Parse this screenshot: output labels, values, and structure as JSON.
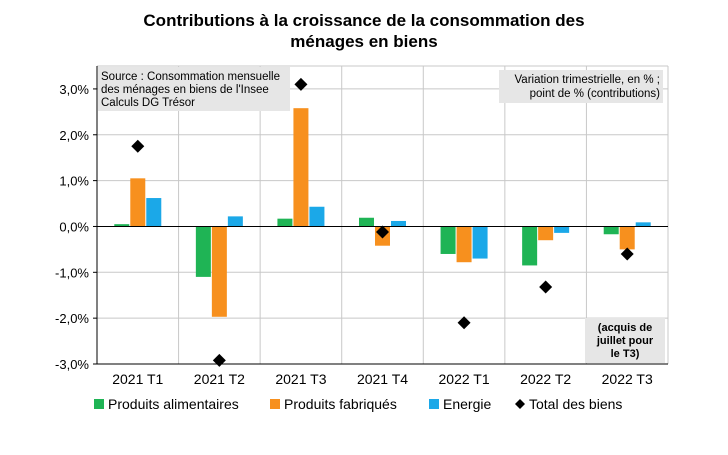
{
  "chart_data": {
    "type": "bar",
    "title_lines": [
      "Contributions à la croissance de la consommation des",
      "ménages en biens"
    ],
    "categories": [
      "2021 T1",
      "2021 T2",
      "2021 T3",
      "2021 T4",
      "2022 T1",
      "2022 T2",
      "2022 T3"
    ],
    "series": [
      {
        "name": "Produits alimentaires",
        "values": [
          0.05,
          -1.1,
          0.17,
          0.19,
          -0.6,
          -0.85,
          -0.17
        ],
        "color": "#1fb455"
      },
      {
        "name": "Produits fabriqués",
        "values": [
          1.05,
          -1.97,
          2.58,
          -0.42,
          -0.78,
          -0.3,
          -0.5
        ],
        "color": "#f7901e"
      },
      {
        "name": "Energie",
        "values": [
          0.62,
          0.22,
          0.43,
          0.12,
          -0.7,
          -0.14,
          0.09
        ],
        "color": "#1ba8e8"
      }
    ],
    "total": {
      "name": "Total des biens",
      "values": [
        1.75,
        -2.92,
        3.1,
        -0.12,
        -2.1,
        -1.32,
        -0.6
      ],
      "color": "#000000"
    },
    "ylim": [
      -3,
      3.5
    ],
    "yticks": [
      -3,
      -2,
      -1,
      0,
      1,
      2,
      3
    ],
    "ytick_labels": [
      "-3,0%",
      "-2,0%",
      "-1,0%",
      "0,0%",
      "1,0%",
      "2,0%",
      "3,0%"
    ],
    "grid": true,
    "legend_position": "bottom",
    "source_lines": [
      "Source : Consommation mensuelle",
      "des ménages en biens de l'Insee",
      "Calculs DG Trésor"
    ],
    "unit_lines": [
      "Variation trimestrielle, en % ;",
      "point de % (contributions)"
    ],
    "note_lines": [
      "(acquis de",
      "juillet pour",
      "le T3)"
    ]
  }
}
